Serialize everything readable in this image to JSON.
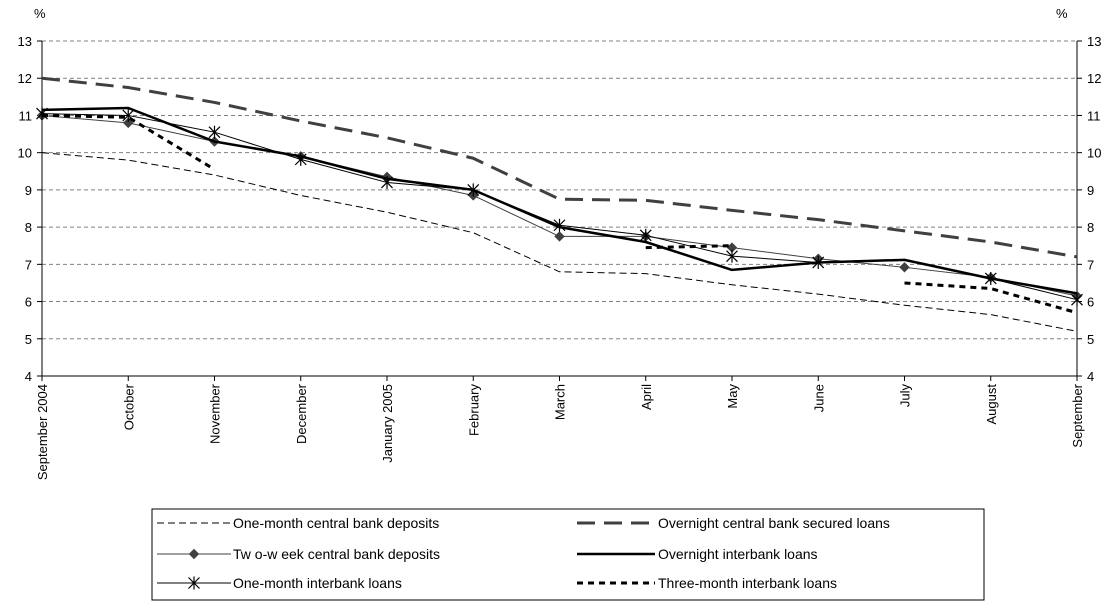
{
  "chart_data": {
    "type": "line",
    "y_unit_left": "%",
    "y_unit_right": "%",
    "ylim": [
      4,
      13
    ],
    "yticks": [
      "4",
      "5",
      "6",
      "7",
      "8",
      "9",
      "10",
      "11",
      "12",
      "13"
    ],
    "grid": "horizontal dashed",
    "legend_position": "bottom",
    "categories": [
      "September 2004",
      "October",
      "November",
      "December",
      "January 2005",
      "February",
      "March",
      "April",
      "May",
      "June",
      "July",
      "August",
      "September"
    ],
    "series": [
      {
        "name": "One-month central bank deposits",
        "style": "thin-dash",
        "color": "#000000",
        "values": [
          10.0,
          9.8,
          9.4,
          8.85,
          8.4,
          7.85,
          6.8,
          6.75,
          6.45,
          6.2,
          5.9,
          5.65,
          5.2
        ]
      },
      {
        "name": "Overnight central bank secured loans",
        "style": "thick-dash",
        "color": "#404040",
        "values": [
          12.0,
          11.75,
          11.35,
          10.85,
          10.4,
          9.85,
          8.75,
          8.72,
          8.45,
          8.2,
          7.9,
          7.6,
          7.2
        ]
      },
      {
        "name": "Tw o-w eek central bank deposits",
        "style": "thin-diamond",
        "color": "#404040",
        "values": [
          11.0,
          10.8,
          10.3,
          9.9,
          9.35,
          8.85,
          7.75,
          7.75,
          7.45,
          7.15,
          6.92,
          6.65,
          6.15
        ]
      },
      {
        "name": "Overnight interbank loans",
        "style": "thick-solid",
        "color": "#000000",
        "values": [
          11.15,
          11.2,
          10.3,
          9.9,
          9.3,
          9.0,
          8.0,
          7.6,
          6.85,
          7.05,
          7.12,
          6.62,
          6.22
        ]
      },
      {
        "name": "One-month interbank loans",
        "style": "thin-star",
        "color": "#000000",
        "values": [
          11.05,
          11.0,
          10.55,
          9.82,
          9.2,
          9.0,
          8.05,
          7.78,
          7.22,
          7.05,
          null,
          6.62,
          6.05
        ]
      },
      {
        "name": "Three-month interbank loans",
        "style": "dotted",
        "color": "#000000",
        "values": [
          11.0,
          10.95,
          9.55,
          null,
          null,
          null,
          null,
          7.45,
          7.5,
          null,
          6.5,
          6.35,
          5.7
        ]
      }
    ]
  }
}
